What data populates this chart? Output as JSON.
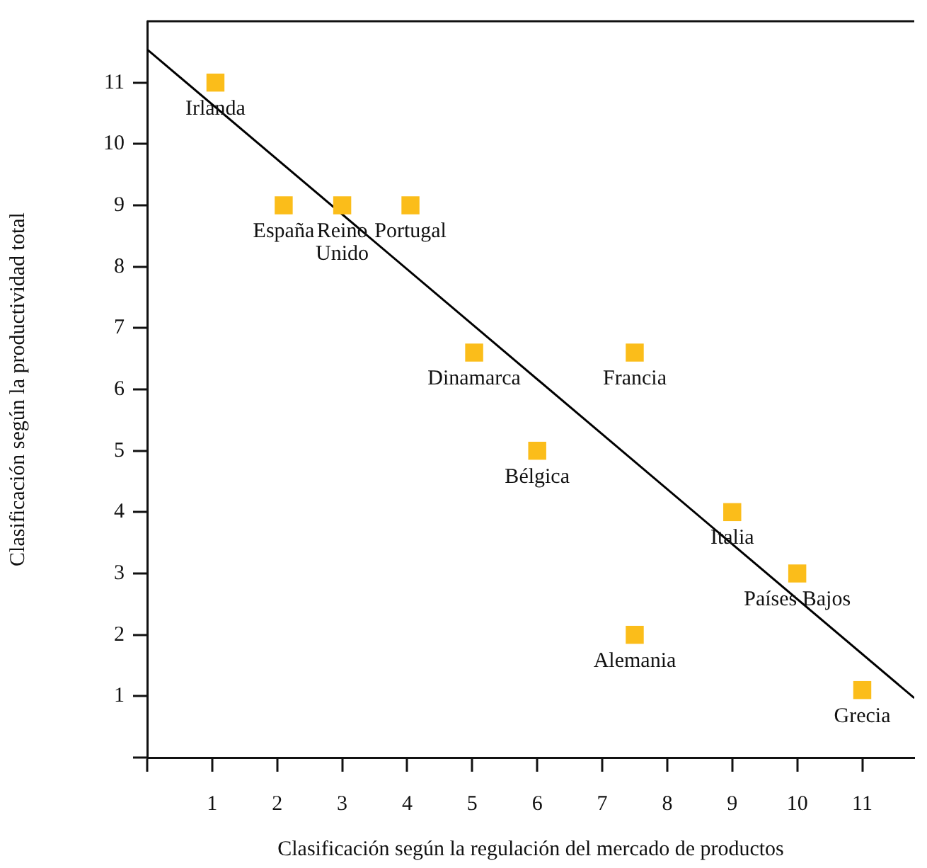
{
  "chart_data": {
    "type": "scatter",
    "xlabel": "Clasificación según la regulación del mercado de productos",
    "ylabel": "Clasificación según la productividad total",
    "xlim": [
      0,
      11.8
    ],
    "ylim": [
      0,
      12
    ],
    "xticks": [
      {
        "value": 0,
        "label": null
      },
      1,
      2,
      3,
      4,
      5,
      6,
      7,
      8,
      9,
      10,
      11
    ],
    "yticks": [
      {
        "value": 0,
        "label": null
      },
      1,
      2,
      3,
      4,
      5,
      6,
      7,
      8,
      9,
      10,
      11
    ],
    "grid": false,
    "legend": false,
    "marker": "square",
    "series": [
      {
        "color": "#fbbd1a",
        "x": [
          1.05,
          2.1,
          3,
          4.05,
          5.03,
          7.5,
          6,
          9,
          10,
          7.5,
          11
        ],
        "values": [
          11,
          9,
          9,
          9,
          6.6,
          6.6,
          5,
          4,
          3,
          2,
          1.1
        ]
      },
      {
        "type": "line",
        "color": "#000000",
        "marker": "none",
        "x": [
          0,
          11.8
        ],
        "values": [
          11.54,
          0.97
        ]
      }
    ],
    "annotations": [
      {
        "text": "Irlanda",
        "x": 1.05,
        "y": 11
      },
      {
        "text": "España",
        "x": 2.1,
        "y": 9
      },
      {
        "text": "Reino\nUnido",
        "x": 3,
        "y": 9
      },
      {
        "text": "Portugal",
        "x": 4.05,
        "y": 9
      },
      {
        "text": "Dinamarca",
        "x": 5.03,
        "y": 6.6
      },
      {
        "text": "Francia",
        "x": 7.5,
        "y": 6.6
      },
      {
        "text": "Bélgica",
        "x": 6,
        "y": 5
      },
      {
        "text": "Italia",
        "x": 9,
        "y": 4
      },
      {
        "text": "Países Bajos",
        "x": 10,
        "y": 3
      },
      {
        "text": "Alemania",
        "x": 7.5,
        "y": 2
      },
      {
        "text": "Grecia",
        "x": 11,
        "y": 1.1
      }
    ]
  }
}
